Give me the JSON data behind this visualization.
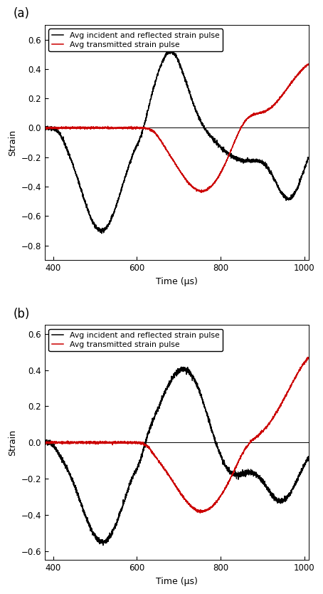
{
  "xlim": [
    380,
    1010
  ],
  "xticks": [
    400,
    600,
    800,
    1000
  ],
  "xlabel": "Time (μs)",
  "ylabel": "Strain",
  "legend_black": "Avg incident and reflected strain pulse",
  "legend_red": "Avg transmitted strain pulse",
  "panel_a_label": "(a)",
  "panel_b_label": "(b)",
  "ylim_a": [
    -0.9,
    0.7
  ],
  "yticks_a": [
    -0.8,
    -0.6,
    -0.4,
    -0.2,
    0.0,
    0.2,
    0.4,
    0.6
  ],
  "ylim_b": [
    -0.65,
    0.65
  ],
  "yticks_b": [
    -0.6,
    -0.4,
    -0.2,
    0.0,
    0.2,
    0.4,
    0.6
  ],
  "black_color": "#000000",
  "red_color": "#cc0000",
  "linewidth": 0.9,
  "noise_amplitude": 0.007
}
